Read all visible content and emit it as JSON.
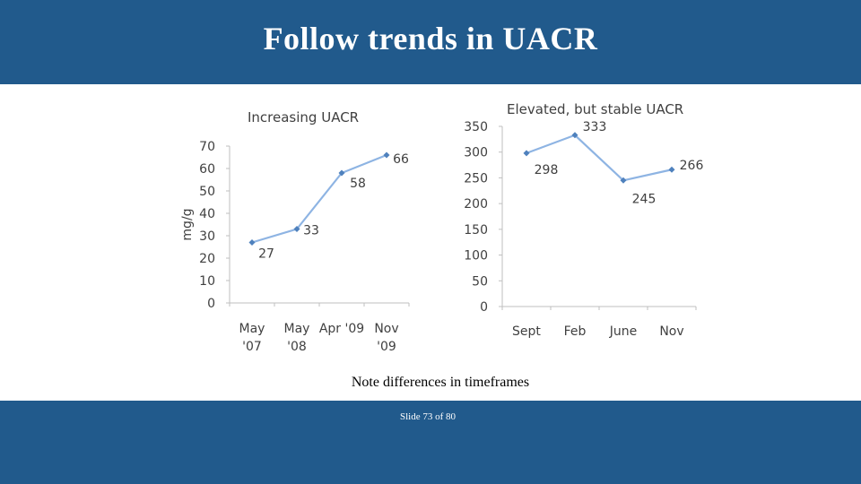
{
  "slide": {
    "title": "Follow trends in UACR",
    "note": "Note differences in timeframes",
    "slide_number": "Slide 73 of 80",
    "colors": {
      "band": "#215a8c",
      "series": "#8eb4e3",
      "marker": "#4f81bd"
    }
  },
  "chart_data": [
    {
      "type": "line",
      "title": "Increasing UACR",
      "ylabel": "mg/g",
      "xlabel": "",
      "categories": [
        [
          "May",
          "'07"
        ],
        [
          "May",
          "'08"
        ],
        [
          "Apr '09"
        ],
        [
          "Nov",
          "'09"
        ]
      ],
      "values": [
        27,
        33,
        58,
        66
      ],
      "data_labels": [
        "27",
        "33",
        "58",
        "66"
      ],
      "ylim": [
        0,
        70
      ],
      "yticks": [
        0,
        10,
        20,
        30,
        40,
        50,
        60,
        70
      ]
    },
    {
      "type": "line",
      "title": "Elevated, but stable UACR",
      "ylabel": "",
      "xlabel": "",
      "categories": [
        [
          "Sept"
        ],
        [
          "Feb"
        ],
        [
          "June"
        ],
        [
          "Nov"
        ]
      ],
      "values": [
        298,
        333,
        245,
        266
      ],
      "data_labels": [
        "298",
        "333",
        "245",
        "266"
      ],
      "ylim": [
        0,
        350
      ],
      "yticks": [
        0,
        50,
        100,
        150,
        200,
        250,
        300,
        350
      ]
    }
  ]
}
